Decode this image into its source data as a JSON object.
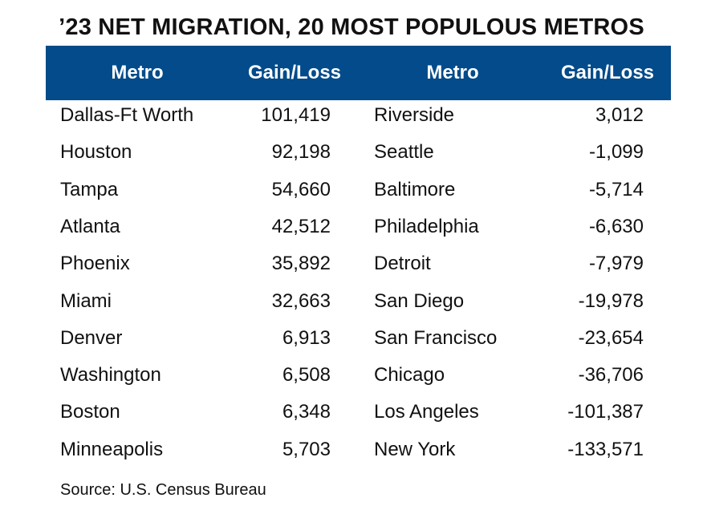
{
  "chart_data": {
    "type": "table",
    "title": "’23 NET MIGRATION, 20 MOST POPULOUS METROS",
    "columns": [
      "Metro",
      "Gain/Loss",
      "Metro",
      "Gain/Loss"
    ],
    "left": [
      {
        "metro": "Dallas-Ft Worth",
        "value": "101,419"
      },
      {
        "metro": "Houston",
        "value": "92,198"
      },
      {
        "metro": "Tampa",
        "value": "54,660"
      },
      {
        "metro": "Atlanta",
        "value": "42,512"
      },
      {
        "metro": "Phoenix",
        "value": "35,892"
      },
      {
        "metro": "Miami",
        "value": "32,663"
      },
      {
        "metro": "Denver",
        "value": "6,913"
      },
      {
        "metro": "Washington",
        "value": "6,508"
      },
      {
        "metro": "Boston",
        "value": "6,348"
      },
      {
        "metro": "Minneapolis",
        "value": "5,703"
      }
    ],
    "right": [
      {
        "metro": "Riverside",
        "value": "3,012"
      },
      {
        "metro": "Seattle",
        "value": "-1,099"
      },
      {
        "metro": "Baltimore",
        "value": "-5,714"
      },
      {
        "metro": "Philadelphia",
        "value": "-6,630"
      },
      {
        "metro": "Detroit",
        "value": "-7,979"
      },
      {
        "metro": "San Diego",
        "value": "-19,978"
      },
      {
        "metro": "San Francisco",
        "value": "-23,654"
      },
      {
        "metro": "Chicago",
        "value": "-36,706"
      },
      {
        "metro": "Los Angeles",
        "value": "-101,387"
      },
      {
        "metro": "New York",
        "value": "-133,571"
      }
    ],
    "source": "Source: U.S. Census Bureau",
    "colors": {
      "header_bg": "#034b8a",
      "header_text": "#ffffff"
    }
  }
}
